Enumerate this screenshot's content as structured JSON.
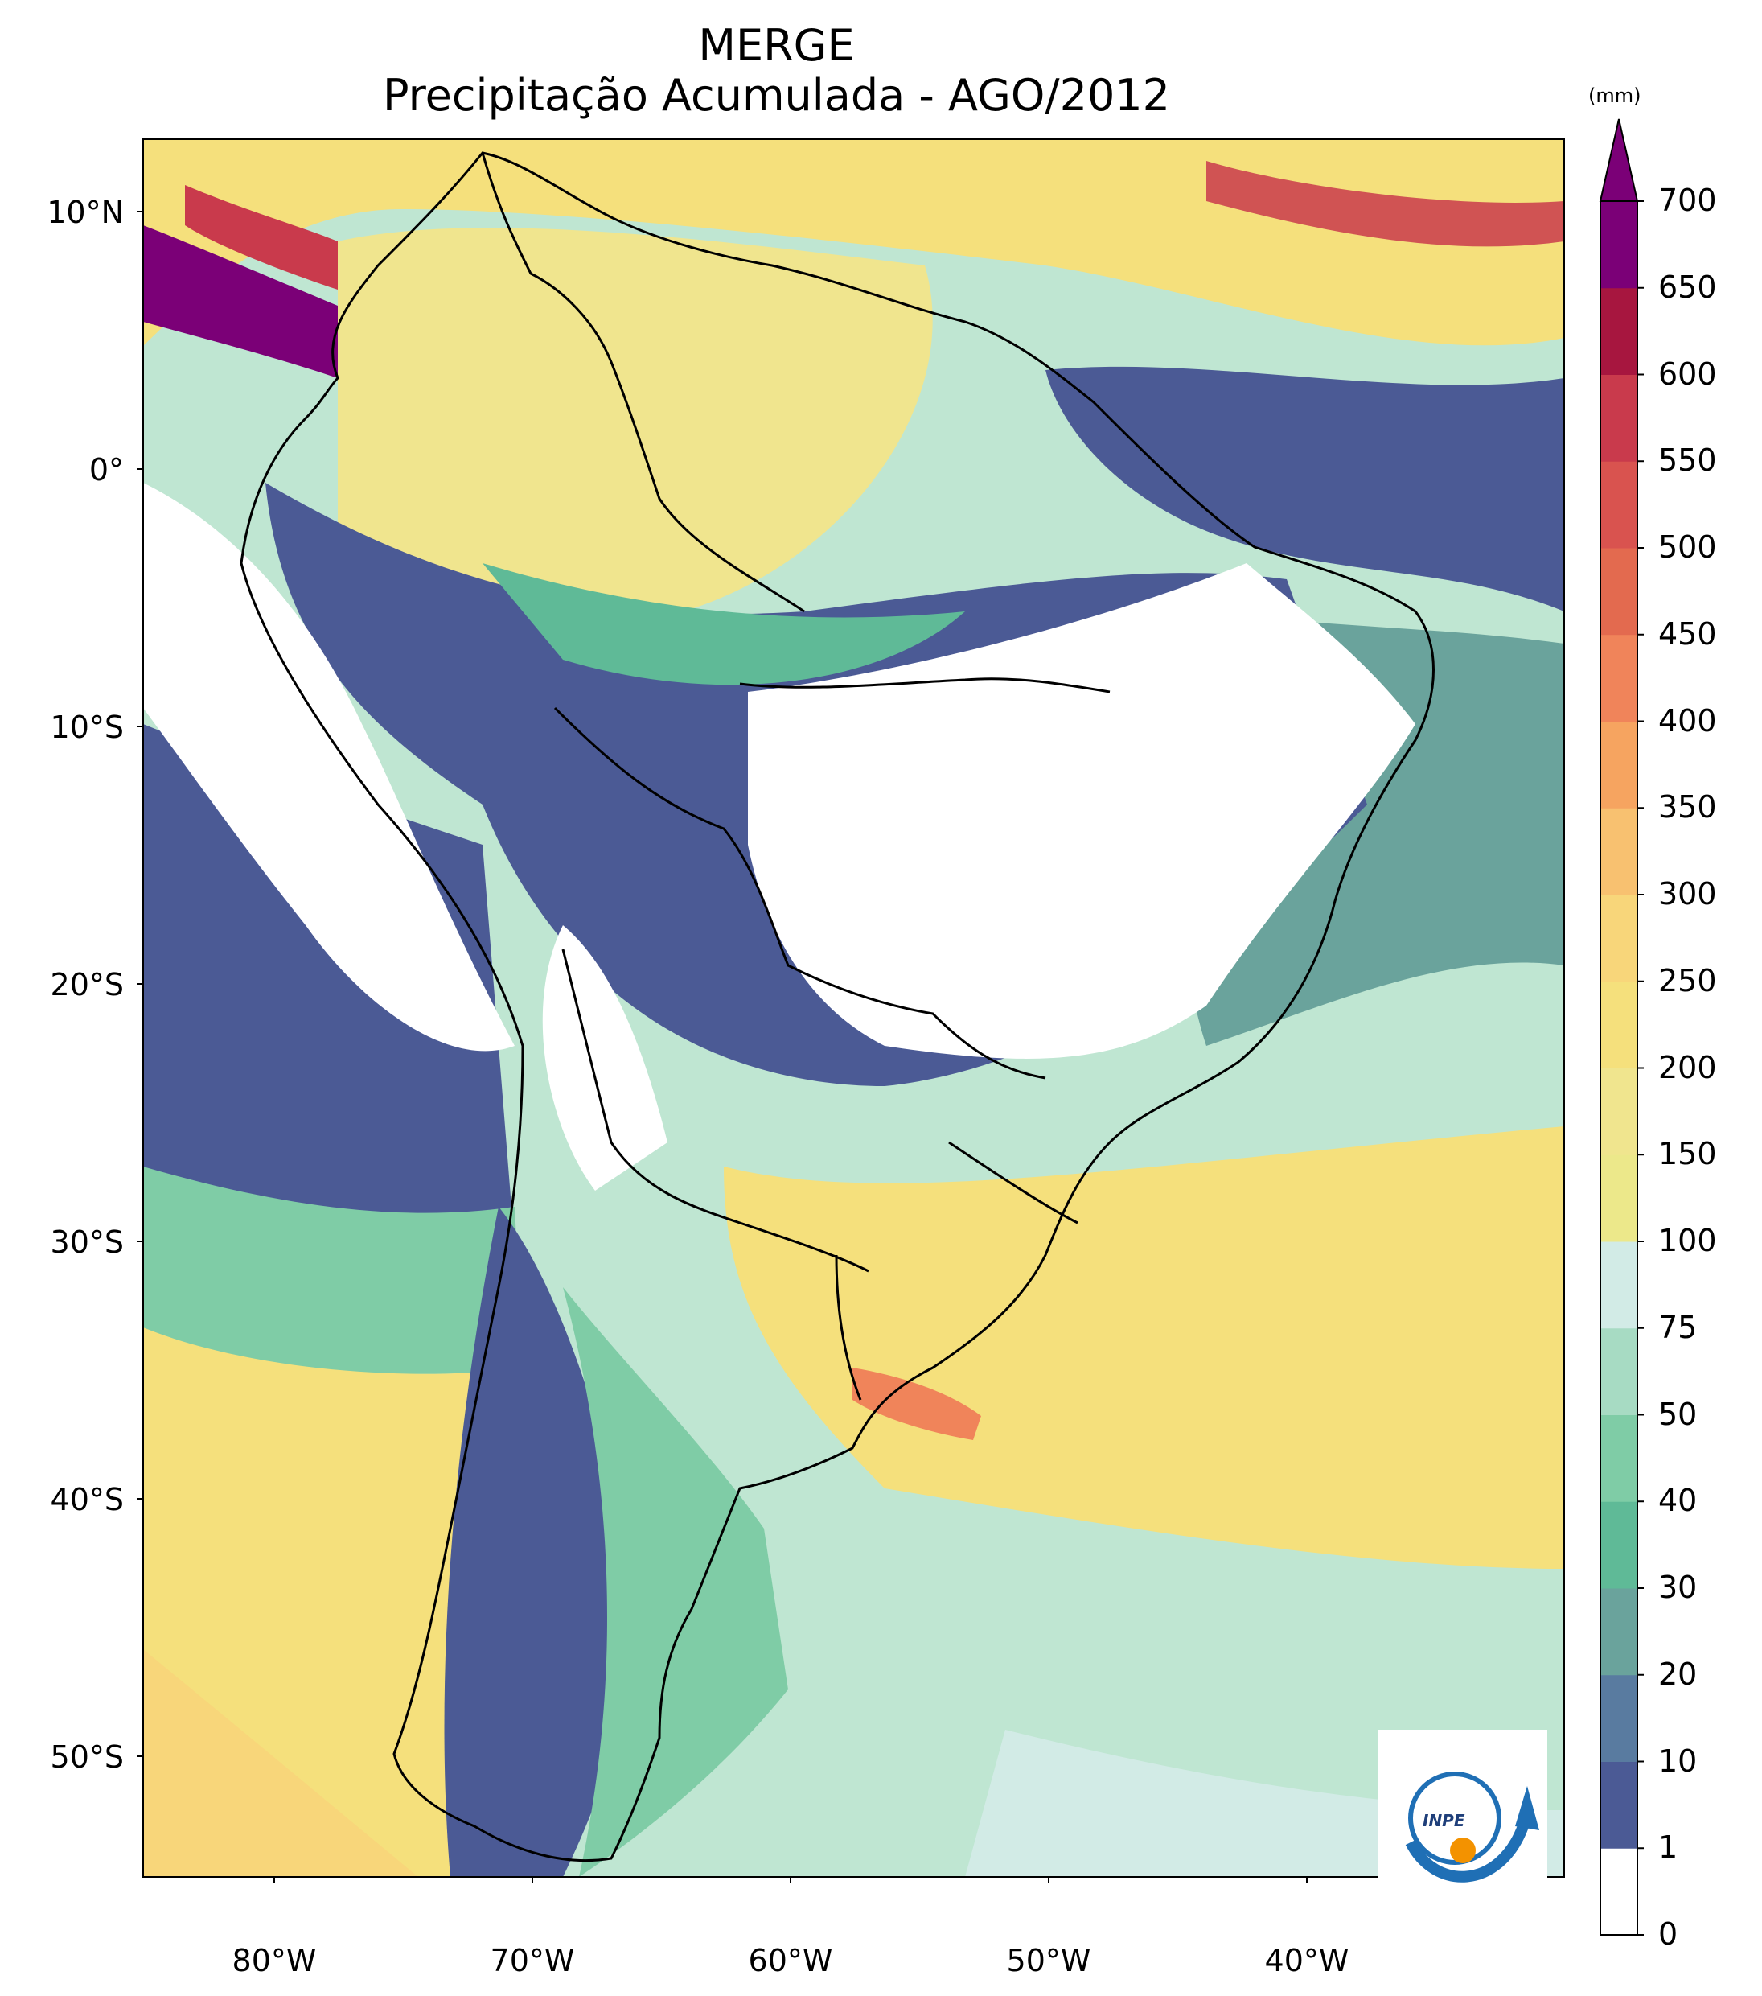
{
  "title": {
    "line1": "MERGE",
    "line2": "Precipitação Acumulada - AGO/2012"
  },
  "lat_ticks": [
    "10°N",
    "0°",
    "10°S",
    "20°S",
    "30°S",
    "40°S",
    "50°S"
  ],
  "lon_ticks": [
    "80°W",
    "70°W",
    "60°W",
    "50°W",
    "40°W"
  ],
  "colorbar": {
    "unit": "(mm)",
    "levels": [
      "0",
      "1",
      "10",
      "20",
      "30",
      "40",
      "50",
      "75",
      "100",
      "150",
      "200",
      "250",
      "300",
      "350",
      "400",
      "450",
      "500",
      "550",
      "600",
      "650",
      "700"
    ],
    "colors": [
      "#ffffff",
      "#4b5a95",
      "#597ba0",
      "#6aa39c",
      "#5fba97",
      "#7fcca6",
      "#a7dbc3",
      "#d2ebe6",
      "#ece88a",
      "#f0e58e",
      "#f5e07c",
      "#f8d67a",
      "#f8c170",
      "#f6a460",
      "#f0845a",
      "#e36a4f",
      "#d9534f",
      "#c93a4c",
      "#a7163f",
      "#7b0077"
    ]
  },
  "logo": {
    "text": "INPE"
  }
}
